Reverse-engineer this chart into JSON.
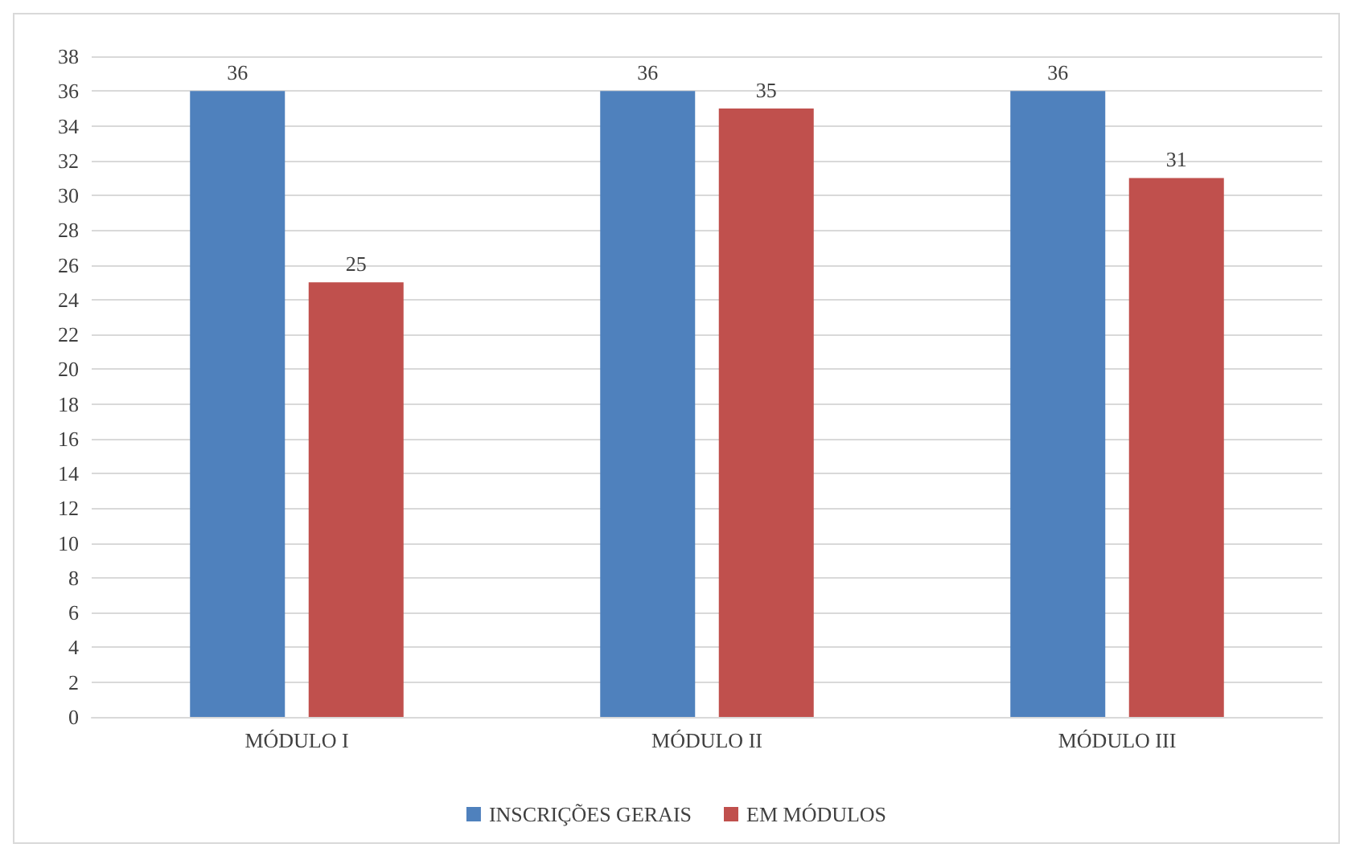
{
  "chart_data": {
    "type": "bar",
    "categories": [
      "MÓDULO I",
      "MÓDULO II",
      "MÓDULO III"
    ],
    "series": [
      {
        "name": "INSCRIÇÕES GERAIS",
        "color": "#4f81bd",
        "values": [
          36,
          36,
          36
        ]
      },
      {
        "name": "EM MÓDULOS",
        "color": "#c0504d",
        "values": [
          25,
          35,
          31
        ]
      }
    ],
    "ylim": [
      0,
      38
    ],
    "yticks": [
      0,
      2,
      4,
      6,
      8,
      10,
      12,
      14,
      16,
      18,
      20,
      22,
      24,
      26,
      28,
      30,
      32,
      34,
      36,
      38
    ],
    "grid": "y",
    "legend": "bottom",
    "data_labels": true
  }
}
